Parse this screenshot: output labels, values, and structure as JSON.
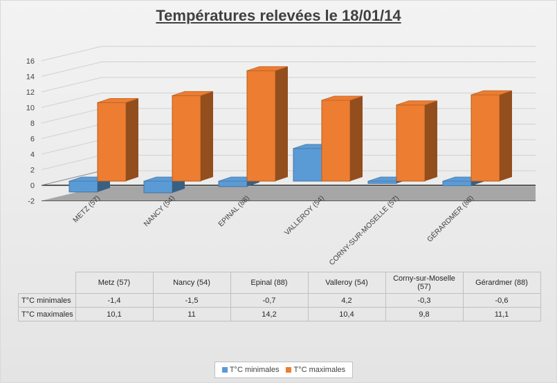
{
  "chart_data": {
    "type": "bar",
    "title": "Températures relevées le 18/01/14",
    "categories": [
      "METZ (57)",
      "NANCY (54)",
      "EPINAL (88)",
      "VALLEROY (54)",
      "CORNY-SUR-MOSELLE (57)",
      "GÉRARDMER (88)"
    ],
    "table_categories": [
      "Metz (57)",
      "Nancy (54)",
      "Epinal (88)",
      "Valleroy (54)",
      "Corny-sur-Moselle (57)",
      "Gérardmer (88)"
    ],
    "series": [
      {
        "name": "T°C minimales",
        "values": [
          -1.4,
          -1.5,
          -0.7,
          4.2,
          -0.3,
          -0.6
        ],
        "labels": [
          "-1,4",
          "-1,5",
          "-0,7",
          "4,2",
          "-0,3",
          "-0,6"
        ],
        "color": "#5b9bd5"
      },
      {
        "name": "T°C maximales",
        "values": [
          10.1,
          11,
          14.2,
          10.4,
          9.8,
          11.1
        ],
        "labels": [
          "10,1",
          "11",
          "14,2",
          "10,4",
          "9,8",
          "11,1"
        ],
        "color": "#ed7d31"
      }
    ],
    "ylim": [
      -2,
      16
    ],
    "yticks": [
      -2,
      0,
      2,
      4,
      6,
      8,
      10,
      12,
      14,
      16
    ],
    "grid": true,
    "legend": "bottom",
    "data_table": true
  }
}
